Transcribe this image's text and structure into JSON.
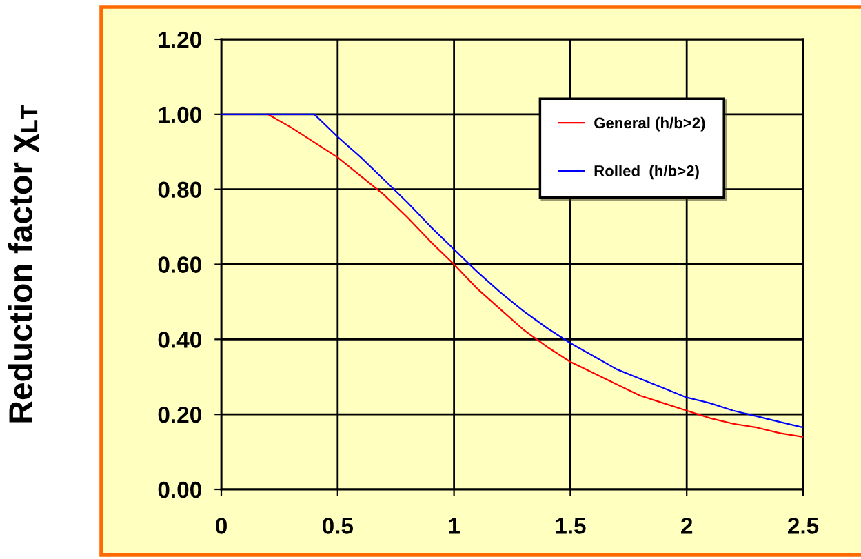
{
  "chart_data": {
    "type": "line",
    "ylabel": "Reduction factor χ$_{LT}$",
    "series": [
      {
        "name": "General (h/b>2)",
        "color": "#ff0000",
        "x": [
          0.2,
          0.3,
          0.4,
          0.5,
          0.6,
          0.7,
          0.8,
          0.9,
          1,
          1.1,
          1.2,
          1.3,
          1.4,
          1.5,
          1.6,
          1.7,
          1.8,
          1.9,
          2,
          2.1,
          2.2,
          2.3,
          2.4,
          2.5
        ],
        "values": [
          1.0,
          0.965,
          0.925,
          0.885,
          0.835,
          0.785,
          0.725,
          0.66,
          0.6,
          0.535,
          0.48,
          0.425,
          0.38,
          0.34,
          0.31,
          0.28,
          0.25,
          0.23,
          0.21,
          0.19,
          0.175,
          0.165,
          0.15,
          0.14
        ]
      },
      {
        "name": "Rolled  (h/b>2)",
        "color": "#0000ff",
        "x": [
          0,
          0.4,
          0.5,
          0.6,
          0.7,
          0.8,
          0.9,
          1,
          1.1,
          1.2,
          1.3,
          1.4,
          1.5,
          1.6,
          1.7,
          1.8,
          1.9,
          2,
          2.1,
          2.2,
          2.3,
          2.4,
          2.5
        ],
        "values": [
          1.0,
          1.0,
          0.94,
          0.885,
          0.825,
          0.765,
          0.7,
          0.64,
          0.58,
          0.525,
          0.475,
          0.43,
          0.39,
          0.355,
          0.32,
          0.295,
          0.27,
          0.245,
          0.23,
          0.21,
          0.195,
          0.18,
          0.165
        ]
      }
    ],
    "xlim": [
      0,
      2.5
    ],
    "xticks": [
      0,
      0.5,
      1,
      1.5,
      2,
      2.5
    ],
    "ylim": [
      0,
      1.2
    ],
    "yticks": [
      {
        "value": 0,
        "label": "0.00"
      },
      {
        "value": 0.2,
        "label": "0.20"
      },
      {
        "value": 0.4,
        "label": "0.40"
      },
      {
        "value": 0.6,
        "label": "0.60"
      },
      {
        "value": 0.8,
        "label": "0.80"
      },
      {
        "value": 1.0,
        "label": "1.00"
      },
      {
        "value": 1.2,
        "label": "1.20"
      }
    ],
    "grid": true,
    "legend": "top right",
    "line_style": "solid"
  }
}
